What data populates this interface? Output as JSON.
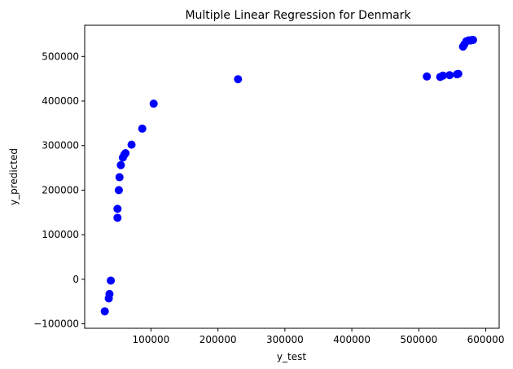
{
  "chart_data": {
    "type": "scatter",
    "title": "Multiple Linear Regression for Denmark",
    "xlabel": "y_test",
    "ylabel": "y_predicted",
    "xlim": [
      1000,
      620000
    ],
    "ylim": [
      -110000,
      570000
    ],
    "xticks": [
      100000,
      200000,
      300000,
      400000,
      500000,
      600000
    ],
    "xtick_labels": [
      "100000",
      "200000",
      "300000",
      "400000",
      "500000",
      "600000"
    ],
    "yticks": [
      -100000,
      0,
      100000,
      200000,
      300000,
      400000,
      500000
    ],
    "ytick_labels": [
      "−100000",
      "0",
      "100000",
      "200000",
      "300000",
      "400000",
      "500000"
    ],
    "grid": false,
    "point_color": "#0000ff",
    "series": [
      {
        "x": [
          31000,
          37000,
          38000,
          40000,
          50000,
          50000,
          52000,
          53000,
          55000,
          58000,
          60000,
          62000,
          71000,
          87000,
          104000,
          230000,
          512000,
          532000,
          536000,
          546000,
          557000,
          559000,
          566000,
          568000,
          571000,
          574000,
          576000,
          578000,
          580000,
          581000
        ],
        "y": [
          -72000,
          -43000,
          -33000,
          -3000,
          138000,
          158000,
          200000,
          229000,
          256000,
          273000,
          279000,
          283000,
          302000,
          338000,
          394000,
          449000,
          455000,
          454000,
          457000,
          458000,
          460000,
          461000,
          522000,
          527000,
          534000,
          536000,
          536000,
          536000,
          537000,
          537000
        ]
      }
    ]
  }
}
